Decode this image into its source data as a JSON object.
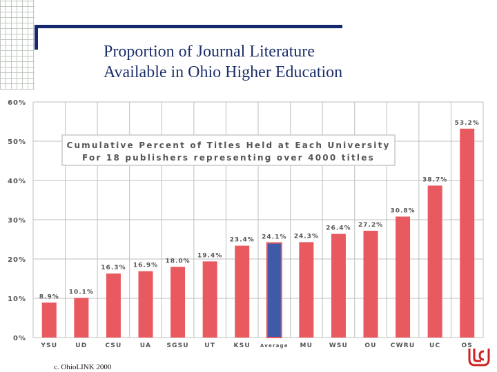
{
  "slide": {
    "title_line1": "Proportion of Journal Literature",
    "title_line2": "Available in Ohio Higher Education",
    "footer": "c. OhioLINK 2000",
    "logo_icon": "ohiolink-logo-icon"
  },
  "chart_data": {
    "type": "bar",
    "title": "",
    "annotation_line1": "Cumulative Percent of Titles Held at Each University",
    "annotation_line2": "For 18 publishers representing over 4000 titles",
    "categories": [
      "YSU",
      "UD",
      "CSU",
      "UA",
      "SGSU",
      "UT",
      "KSU",
      "Average",
      "MU",
      "WSU",
      "OU",
      "CWRU",
      "UC",
      "OS"
    ],
    "values": [
      8.9,
      10.1,
      16.3,
      16.9,
      18.0,
      19.4,
      23.4,
      24.1,
      24.3,
      26.4,
      27.2,
      30.8,
      38.7,
      53.2
    ],
    "value_labels": [
      "8.9%",
      "10.1%",
      "16.3%",
      "16.9%",
      "18.0%",
      "19.4%",
      "23.4%",
      "24.1%",
      "24.3%",
      "26.4%",
      "27.2%",
      "30.8%",
      "38.7%",
      "53.2%"
    ],
    "y_ticks": [
      0,
      10,
      20,
      30,
      40,
      50,
      60
    ],
    "y_tick_labels": [
      "0%",
      "10%",
      "20%",
      "30%",
      "40%",
      "50%",
      "60%"
    ],
    "ylim": [
      0,
      60
    ],
    "xlabel": "",
    "ylabel": "",
    "grid": true,
    "highlight_category": "Average",
    "colors": {
      "bar": "#e85a5f",
      "highlight": "#3f5aa6",
      "grid": "#bfbfbf",
      "text": "#555555"
    }
  }
}
